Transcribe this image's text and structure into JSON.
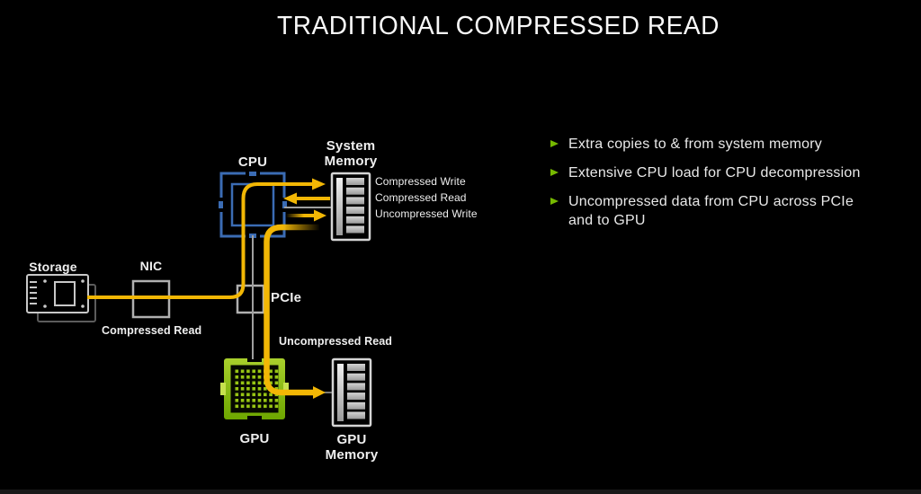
{
  "title": "TRADITIONAL COMPRESSED READ",
  "diagram": {
    "storage_label": "Storage",
    "nic_label": "NIC",
    "cpu_label": "CPU",
    "system_memory_label": "System\nMemory",
    "pcie_label": "PCIe",
    "gpu_label": "GPU",
    "gpu_memory_label": "GPU\nMemory",
    "flows": {
      "compressed_write": "Compressed Write",
      "compressed_read": "Compressed Read",
      "uncompressed_write": "Uncompressed Write",
      "storage_compressed_read": "Compressed Read",
      "gpu_uncompressed_read": "Uncompressed Read"
    }
  },
  "bullets": [
    "Extra copies to & from system memory",
    "Extensive CPU load for CPU decompression",
    "Uncompressed data from CPU across PCIe and to GPU"
  ],
  "colors": {
    "background": "#000000",
    "accent_green": "#76b900",
    "flow_yellow": "#f2b705",
    "cpu_blue": "#3b6cb4",
    "wire_gray": "#a0a0a0",
    "text": "#e9e9e9"
  }
}
